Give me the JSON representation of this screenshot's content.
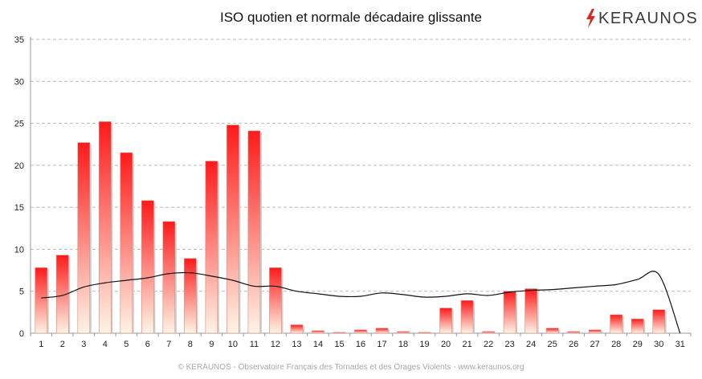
{
  "brand": {
    "name": "KERAUNOS",
    "accent_color": "#d42a20",
    "icon": "lightning-bolt-icon"
  },
  "footer_text": "© KERAUNOS - Observatoire Français des Tornades et des Orages Violents - www.keraunos.org",
  "chart_data": {
    "type": "bar",
    "title": "ISO quotien et normale décadaire glissante",
    "xlabel": "",
    "ylabel": "",
    "categories": [
      "1",
      "2",
      "3",
      "4",
      "5",
      "6",
      "7",
      "8",
      "9",
      "10",
      "11",
      "12",
      "13",
      "14",
      "15",
      "16",
      "17",
      "18",
      "19",
      "20",
      "21",
      "22",
      "23",
      "24",
      "25",
      "26",
      "27",
      "28",
      "29",
      "30",
      "31"
    ],
    "ylim": [
      0,
      35
    ],
    "yticks": [
      0,
      5,
      10,
      15,
      20,
      25,
      30,
      35
    ],
    "grid": true,
    "series": [
      {
        "type": "bar",
        "values": [
          7.8,
          9.3,
          22.7,
          25.2,
          21.5,
          15.8,
          13.3,
          8.9,
          20.5,
          24.8,
          24.1,
          7.8,
          1.0,
          0.3,
          0.1,
          0.4,
          0.6,
          0.2,
          0.1,
          3.0,
          3.9,
          0.2,
          5.0,
          5.3,
          0.6,
          0.2,
          0.4,
          2.2,
          1.7,
          2.8,
          0
        ],
        "color_top": "#ff1a1a",
        "color_bottom": "#fff4e6"
      },
      {
        "type": "line",
        "values": [
          4.2,
          4.5,
          5.5,
          6.0,
          6.3,
          6.6,
          7.1,
          7.2,
          6.8,
          6.3,
          5.6,
          5.6,
          5.0,
          4.7,
          4.4,
          4.4,
          4.8,
          4.6,
          4.3,
          4.4,
          4.7,
          4.5,
          4.9,
          5.1,
          5.2,
          5.4,
          5.6,
          5.8,
          6.4,
          7.0,
          0
        ],
        "color": "#111111"
      }
    ]
  }
}
